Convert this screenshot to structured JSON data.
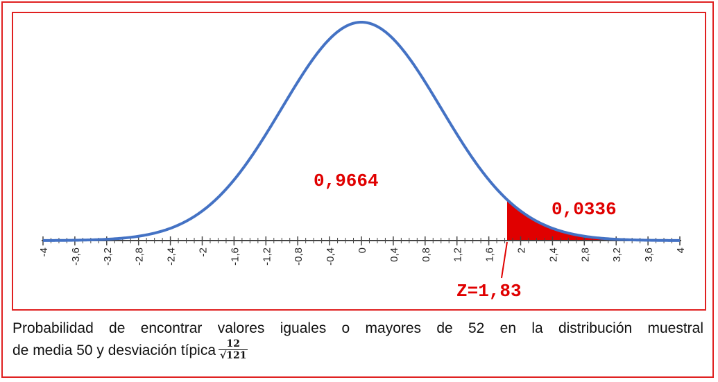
{
  "chart_data": {
    "type": "area",
    "distribution": "standard-normal",
    "xlim": [
      -4,
      4
    ],
    "tick_labels": [
      "-4",
      "-3,6",
      "-3,2",
      "-2,8",
      "-2,4",
      "-2",
      "-1,6",
      "-1,2",
      "-0,8",
      "-0,4",
      "0",
      "0,4",
      "0,8",
      "1,2",
      "1,6",
      "2",
      "2,4",
      "2,8",
      "3,2",
      "3,6",
      "4"
    ],
    "tick_values": [
      -4,
      -3.6,
      -3.2,
      -2.8,
      -2.4,
      -2,
      -1.6,
      -1.2,
      -0.8,
      -0.4,
      0,
      0.4,
      0.8,
      1.2,
      1.6,
      2,
      2.4,
      2.8,
      3.2,
      3.6,
      4
    ],
    "minor_tick_step": 0.1,
    "z_value": 1.83,
    "z_label": "Z=1,83",
    "area_left_label": "0,9664",
    "area_right_label": "0,0336",
    "area_left": 0.9664,
    "area_right": 0.0336,
    "shaded_region": [
      1.83,
      4
    ],
    "colors": {
      "curve": "#4472c4",
      "shade": "#e00000",
      "label": "#e00000",
      "frame": "#e02020",
      "axis": "#444444"
    }
  },
  "caption": {
    "line1": "Probabilidad de encontrar valores iguales o mayores de 52 en la distribución muestral",
    "line2": "de media 50 y desviación típica",
    "fraction_numerator": "12",
    "fraction_denominator": "√121"
  }
}
